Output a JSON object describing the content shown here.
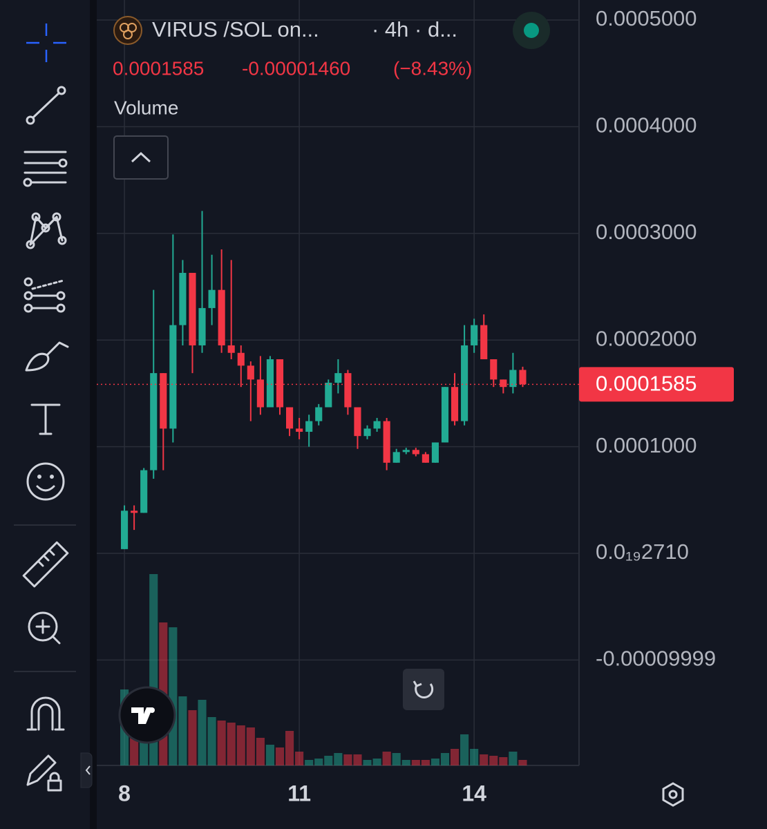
{
  "chart_data": {
    "type": "candlestick",
    "title": "VIRUS /SOL on...",
    "subtitle": "· 4h · d...",
    "last_price": 0.0001585,
    "change": {
      "value": -1.46e-05,
      "label": "-0.00001460"
    },
    "change_percent": {
      "value": -8.43,
      "label": "(−8.43%)"
    },
    "volume_label": "Volume",
    "up_color": "#22ab94",
    "down_color": "#f23645",
    "grid": true,
    "xlim": [
      -2.85,
      46.8
    ],
    "xticks": [
      {
        "value": 0,
        "label": "8"
      },
      {
        "value": 18,
        "label": "11"
      },
      {
        "value": 36,
        "label": "14"
      }
    ],
    "ylim": [
      -0.0001988,
      0.0005188
    ],
    "yticks": [
      {
        "value": 0.0005,
        "label": "0.0005000"
      },
      {
        "value": 0.0004,
        "label": "0.0004000"
      },
      {
        "value": 0.0003,
        "label": "0.0003000"
      },
      {
        "value": 0.0002,
        "label": "0.0002000"
      },
      {
        "value": 0.0001,
        "label": "0.0001000"
      },
      {
        "value": 2.71e-23,
        "label": "0.0₁₉2710"
      },
      {
        "value": -9.999e-05,
        "label": "-0.00009999"
      }
    ],
    "open": [
      4e-06,
      4e-05,
      3.8e-05,
      7.8e-05,
      0.000169,
      0.000117,
      0.000214,
      0.000263,
      0.000195,
      0.00023,
      0.000247,
      0.000195,
      0.000188,
      0.000176,
      0.000163,
      0.000137,
      0.000182,
      0.000137,
      0.000117,
      0.000114,
      0.000124,
      0.000137,
      0.00016,
      0.000169,
      0.000137,
      0.00011,
      0.000117,
      0.000124,
      8.5e-05,
      9.5e-05,
      9.7e-05,
      9.3e-05,
      8.5e-05,
      0.000104,
      0.000156,
      0.000124,
      0.000195,
      0.000214,
      0.000182,
      0.000163,
      0.000156,
      0.000172
    ],
    "high": [
      4.5e-05,
      4.5e-05,
      8e-05,
      0.000247,
      0.000169,
      0.000299,
      0.000275,
      0.000263,
      0.000321,
      0.00028,
      0.000285,
      0.000275,
      0.000195,
      0.00018,
      0.000185,
      0.000185,
      0.000182,
      0.000137,
      0.000127,
      0.00013,
      0.00014,
      0.000163,
      0.000182,
      0.000172,
      0.000137,
      0.00012,
      0.000127,
      0.000127,
      9.8e-05,
      9.9e-05,
      9.9e-05,
      9.5e-05,
      0.000104,
      0.000156,
      0.000169,
      0.000214,
      0.00022,
      0.000224,
      0.000182,
      0.000163,
      0.000188,
      0.000175
    ],
    "low": [
      4e-06,
      2.2e-05,
      3.8e-05,
      7e-05,
      7.8e-05,
      0.000104,
      0.000195,
      0.000169,
      0.000188,
      0.000214,
      0.000188,
      0.000182,
      0.000156,
      0.000124,
      0.00013,
      0.000137,
      0.00013,
      0.00011,
      0.000107,
      0.0001,
      0.00012,
      0.000137,
      0.00015,
      0.00013,
      9.8e-05,
      0.000107,
      0.000114,
      7.8e-05,
      8.5e-05,
      9.3e-05,
      9.1e-05,
      8.5e-05,
      8.5e-05,
      0.000104,
      0.00012,
      0.00012,
      0.000188,
      0.000182,
      0.000156,
      0.00015,
      0.00015,
      0.000156
    ],
    "close": [
      4e-05,
      3.8e-05,
      7.8e-05,
      0.000169,
      0.000117,
      0.000214,
      0.000263,
      0.000195,
      0.00023,
      0.000247,
      0.000195,
      0.000188,
      0.000176,
      0.000163,
      0.000137,
      0.000182,
      0.000137,
      0.000117,
      0.000114,
      0.000124,
      0.000137,
      0.00016,
      0.000169,
      0.000137,
      0.00011,
      0.000117,
      0.000124,
      8.5e-05,
      9.5e-05,
      9.7e-05,
      9.3e-05,
      8.5e-05,
      0.000104,
      0.000156,
      0.000124,
      0.000195,
      0.000214,
      0.000182,
      0.000163,
      0.000156,
      0.000172,
      0.0001585
    ],
    "volume": [
      110,
      70,
      90,
      277,
      207,
      200,
      100,
      80,
      95,
      70,
      65,
      62,
      58,
      55,
      40,
      30,
      26,
      50,
      20,
      8,
      10,
      14,
      18,
      16,
      16,
      8,
      10,
      20,
      18,
      8,
      8,
      8,
      10,
      18,
      24,
      45,
      24,
      16,
      14,
      12,
      20,
      8
    ]
  }
}
